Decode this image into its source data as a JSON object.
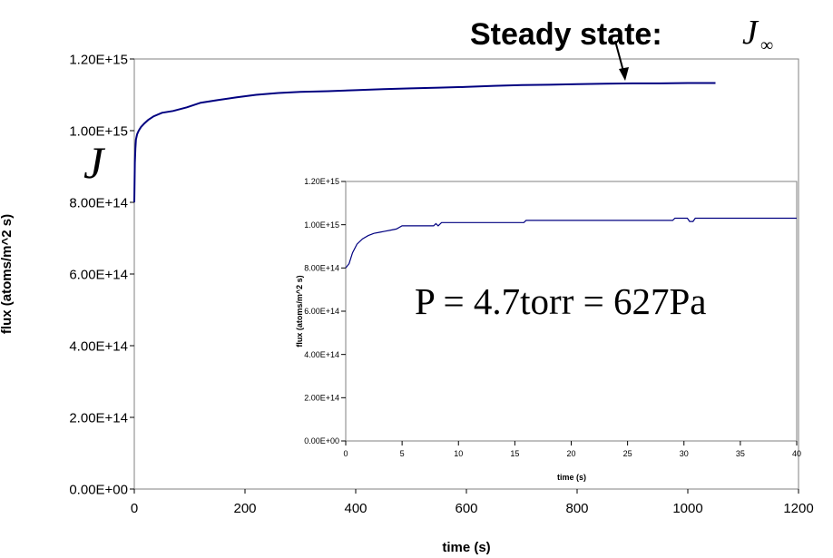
{
  "chart_data": [
    {
      "type": "line",
      "xlabel": "time (s)",
      "ylabel": "flux (atoms/m^2 s)",
      "xlim": [
        0,
        1200
      ],
      "ylim": [
        0,
        1200000000000000.0
      ],
      "x_ticks": [
        "0",
        "200",
        "400",
        "600",
        "800",
        "1000",
        "1200"
      ],
      "y_ticks": [
        "0.00E+00",
        "2.00E+14",
        "4.00E+14",
        "6.00E+14",
        "8.00E+14",
        "1.00E+15",
        "1.20E+15"
      ],
      "grid": false,
      "series": [
        {
          "color": "#000080",
          "x": [
            0,
            1,
            2,
            3,
            5,
            8,
            12,
            18,
            25,
            35,
            50,
            70,
            95,
            120,
            150,
            185,
            220,
            260,
            300,
            350,
            400,
            450,
            500,
            550,
            600,
            650,
            700,
            750,
            800,
            850,
            900,
            950,
            1000,
            1050
          ],
          "y": [
            800000000000000.0,
            910000000000000.0,
            950000000000000.0,
            975000000000000.0,
            990000000000000.0,
            1000000000000000.0,
            1010000000000000.0,
            1020000000000000.0,
            1030000000000000.0,
            1040000000000000.0,
            1050000000000000.0,
            1055000000000000.0,
            1065000000000000.0,
            1078000000000000.0,
            1085000000000000.0,
            1093000000000000.0,
            1100000000000000.0,
            1105000000000000.0,
            1108000000000000.0,
            1110000000000000.0,
            1113000000000000.0,
            1116000000000000.0,
            1118000000000000.0,
            1120000000000000.0,
            1122000000000000.0,
            1125000000000000.0,
            1127000000000000.0,
            1128000000000000.0,
            1130000000000000.0,
            1131000000000000.0,
            1132000000000000.0,
            1132000000000000.0,
            1133000000000000.0,
            1133000000000000.0
          ]
        }
      ],
      "annotations": {
        "steady_state_prefix": "Steady state:",
        "steady_state_symbol": "J",
        "steady_state_subscript": "∞",
        "j_symbol": "J"
      }
    },
    {
      "type": "line",
      "xlabel": "time (s)",
      "ylabel": "flux (atoms/m^2 s)",
      "xlim": [
        0,
        40
      ],
      "ylim": [
        0,
        1200000000000000.0
      ],
      "x_ticks": [
        "0",
        "5",
        "10",
        "15",
        "20",
        "25",
        "30",
        "35",
        "40"
      ],
      "y_ticks": [
        "0.00E+00",
        "2.00E+14",
        "4.00E+14",
        "6.00E+14",
        "8.00E+14",
        "1.00E+15",
        "1.20E+15"
      ],
      "grid": false,
      "series": [
        {
          "color": "#000080",
          "x": [
            0,
            0.3,
            0.6,
            1.0,
            1.5,
            2.0,
            2.5,
            3.0,
            3.5,
            4.0,
            4.5,
            5.0,
            7.8,
            8.0,
            8.2,
            8.5,
            8.7,
            15.8,
            16.0,
            29.0,
            29.2,
            30.3,
            30.5,
            30.8,
            31.0,
            31.5,
            40.0
          ],
          "y": [
            800000000000000.0,
            820000000000000.0,
            870000000000000.0,
            910000000000000.0,
            935000000000000.0,
            950000000000000.0,
            960000000000000.0,
            965000000000000.0,
            970000000000000.0,
            975000000000000.0,
            980000000000000.0,
            995000000000000.0,
            995000000000000.0,
            1005000000000000.0,
            995000000000000.0,
            1010000000000000.0,
            1010000000000000.0,
            1010000000000000.0,
            1020000000000000.0,
            1020000000000000.0,
            1030000000000000.0,
            1030000000000000.0,
            1015000000000000.0,
            1015000000000000.0,
            1030000000000000.0,
            1030000000000000.0,
            1030000000000000.0
          ]
        }
      ],
      "annotations": {
        "pressure_text": "P = 4.7torr = 627Pa"
      }
    }
  ]
}
